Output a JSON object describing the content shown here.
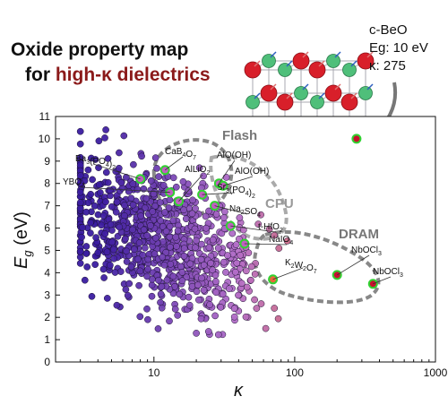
{
  "header": {
    "title_line1": "Oxide property map",
    "title_line2_prefix": "for ",
    "title_line2_accent": "high-κ dielectrics"
  },
  "inset": {
    "material": "c-BeO",
    "eg": "Eg: 10 eV",
    "kappa": "κ: 275"
  },
  "colors": {
    "accent_title": "#8b1a1a",
    "region_outline": "#888888",
    "highlight_ring": "#32d232",
    "low_kappa_point": "#3a1ca0",
    "high_kappa_point": "#e8683a"
  },
  "chart_data": {
    "type": "scatter",
    "xlabel": "κ",
    "ylabel": "E_g (eV)",
    "xscale": "log",
    "xlim": [
      2,
      1000
    ],
    "ylim": [
      0,
      11
    ],
    "xticks": [
      "10",
      "100",
      "1000"
    ],
    "yticks": [
      "0",
      "1",
      "2",
      "3",
      "4",
      "5",
      "6",
      "7",
      "8",
      "9",
      "10",
      "11"
    ],
    "regions": [
      {
        "name": "Flash",
        "color": "#888888"
      },
      {
        "name": "CPU",
        "color": "#aaaaaa"
      },
      {
        "name": "DRAM",
        "color": "#888888"
      }
    ],
    "annotated_points": [
      {
        "label": "Ba3(PO4)2",
        "kappa": 8.0,
        "eg": 8.2
      },
      {
        "label": "CaB4O7",
        "kappa": 12.0,
        "eg": 8.6
      },
      {
        "label": "YBO3",
        "kappa": 13.0,
        "eg": 7.6
      },
      {
        "label": "AlLiO2",
        "kappa": 15.0,
        "eg": 7.2
      },
      {
        "label": "AlO(OH)",
        "kappa": 29.0,
        "eg": 8.0
      },
      {
        "label": "AlO(OH)",
        "kappa": 31.0,
        "eg": 7.9
      },
      {
        "label": "Sr3(PO4)2",
        "kappa": 22.0,
        "eg": 7.5
      },
      {
        "label": "Na2SO4",
        "kappa": 27.0,
        "eg": 7.0
      },
      {
        "label": "t-HfO2",
        "kappa": 35.0,
        "eg": 6.1
      },
      {
        "label": "NaIO4",
        "kappa": 44.0,
        "eg": 5.3
      },
      {
        "label": "K2W2O7",
        "kappa": 70.0,
        "eg": 3.7
      },
      {
        "label": "NbOCl3",
        "kappa": 200.0,
        "eg": 3.9
      },
      {
        "label": "NbOCl3",
        "kappa": 360.0,
        "eg": 3.5
      },
      {
        "label": "c-BeO",
        "kappa": 275.0,
        "eg": 10.0
      }
    ],
    "point_cloud_description_values": {
      "kappa_range": [
        3,
        450
      ],
      "eg_range": [
        0.3,
        10.4
      ],
      "count": 900
    }
  },
  "labels": {
    "ann": [
      {
        "text": "Ba",
        "sub1": "3",
        "mid": "(PO",
        "sub2": "4",
        "end": ")",
        "sub3": "2"
      },
      {
        "text": "CaB",
        "sub1": "4",
        "mid": "O",
        "sub2": "7",
        "end": "",
        "sub3": ""
      },
      {
        "text": "YBO",
        "sub1": "3",
        "mid": "",
        "sub2": "",
        "end": "",
        "sub3": ""
      },
      {
        "text": "AlLiO",
        "sub1": "2",
        "mid": "",
        "sub2": "",
        "end": "",
        "sub3": ""
      },
      {
        "text": "AlO(OH)",
        "sub1": "",
        "mid": "",
        "sub2": "",
        "end": "",
        "sub3": ""
      },
      {
        "text": "AlO(OH)",
        "sub1": "",
        "mid": "",
        "sub2": "",
        "end": "",
        "sub3": ""
      },
      {
        "text": "Sr",
        "sub1": "3",
        "mid": "(PO",
        "sub2": "4",
        "end": ")",
        "sub3": "2"
      },
      {
        "text": "Na",
        "sub1": "2",
        "mid": "SO",
        "sub2": "4",
        "end": "",
        "sub3": ""
      },
      {
        "text": "t-HfO",
        "sub1": "2",
        "mid": "",
        "sub2": "",
        "end": "",
        "sub3": ""
      },
      {
        "text": "NaIO",
        "sub1": "4",
        "mid": "",
        "sub2": "",
        "end": "",
        "sub3": ""
      },
      {
        "text": "K",
        "sub1": "2",
        "mid": "W",
        "sub2": "2",
        "end": "O",
        "sub3": "7"
      },
      {
        "text": "NbOCl",
        "sub1": "3",
        "mid": "",
        "sub2": "",
        "end": "",
        "sub3": ""
      },
      {
        "text": "NbOCl",
        "sub1": "3",
        "mid": "",
        "sub2": "",
        "end": "",
        "sub3": ""
      }
    ]
  }
}
